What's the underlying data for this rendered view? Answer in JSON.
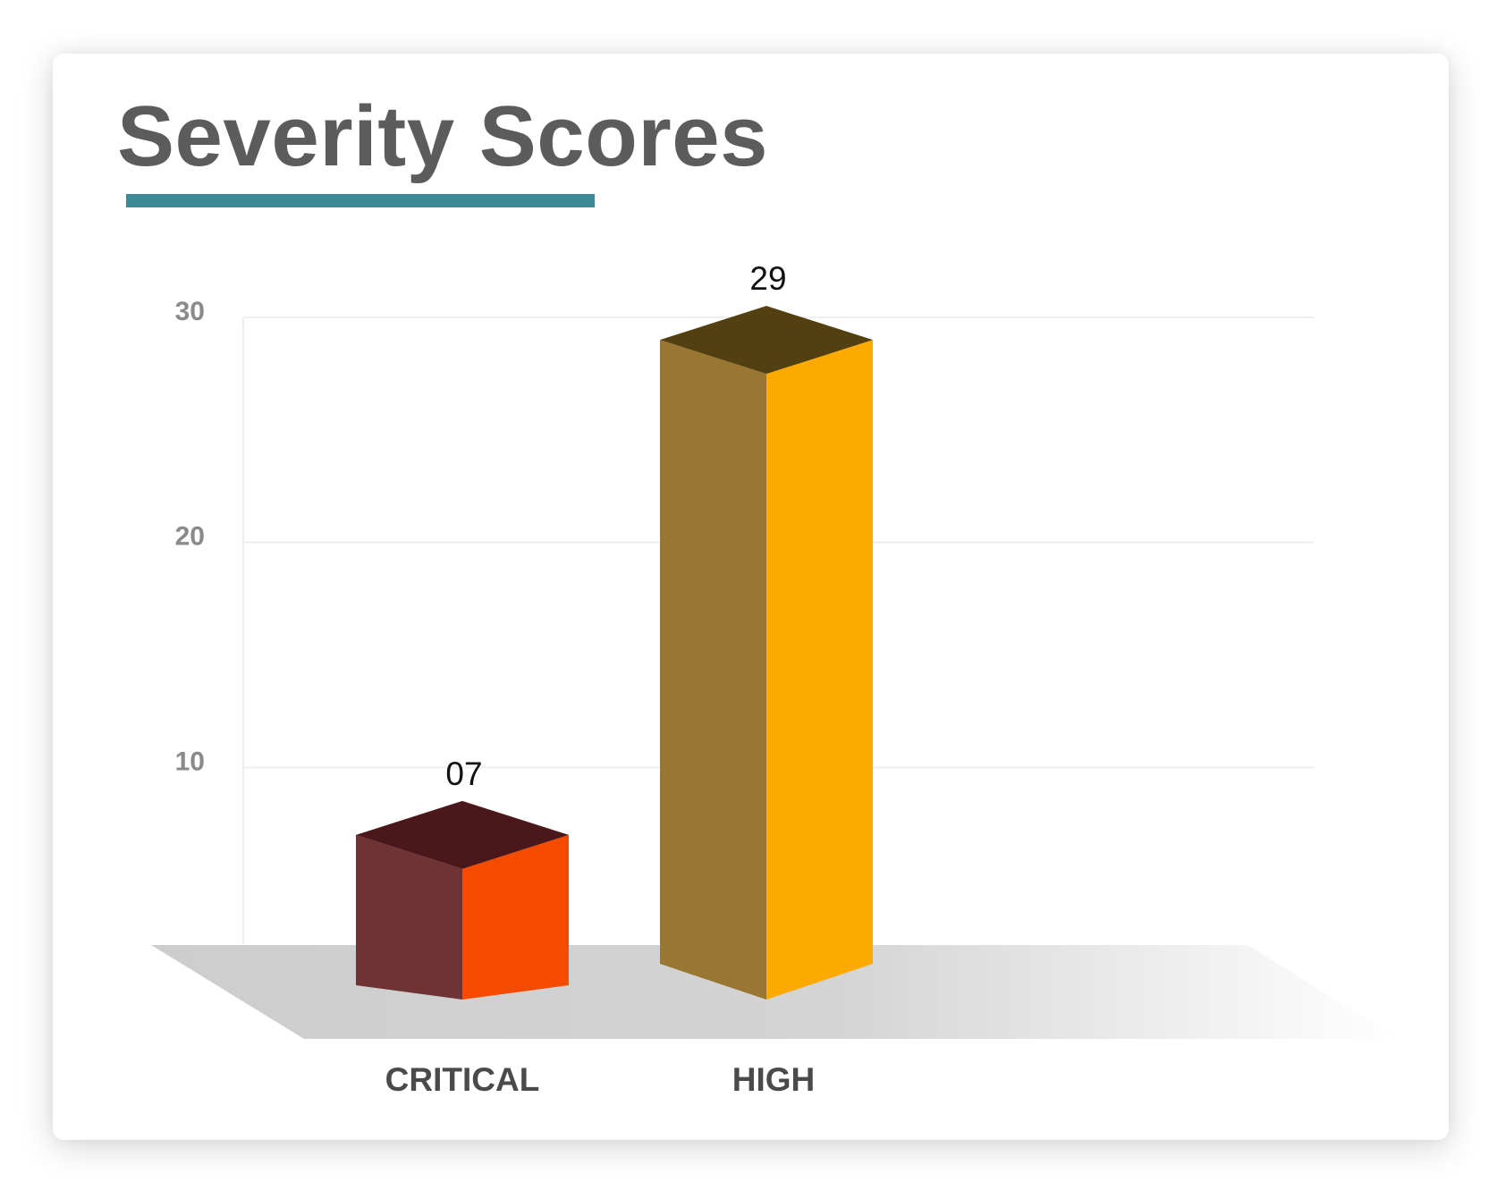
{
  "chart_data": {
    "type": "bar",
    "title": "Severity Scores",
    "categories": [
      "CRITICAL",
      "HIGH"
    ],
    "values": [
      7,
      29
    ],
    "value_labels": [
      "07",
      "29"
    ],
    "yticks": [
      10,
      20,
      30
    ],
    "ylim": [
      0,
      30
    ],
    "grid": true,
    "colors": {
      "accent": "#3b8a96",
      "bars": [
        {
          "front": "#f54b00",
          "side": "#703333",
          "top": "#4a181b"
        },
        {
          "front": "#fcaa00",
          "side": "#9a7633",
          "top": "#524010"
        }
      ],
      "floor": "#d0d0d0"
    }
  }
}
